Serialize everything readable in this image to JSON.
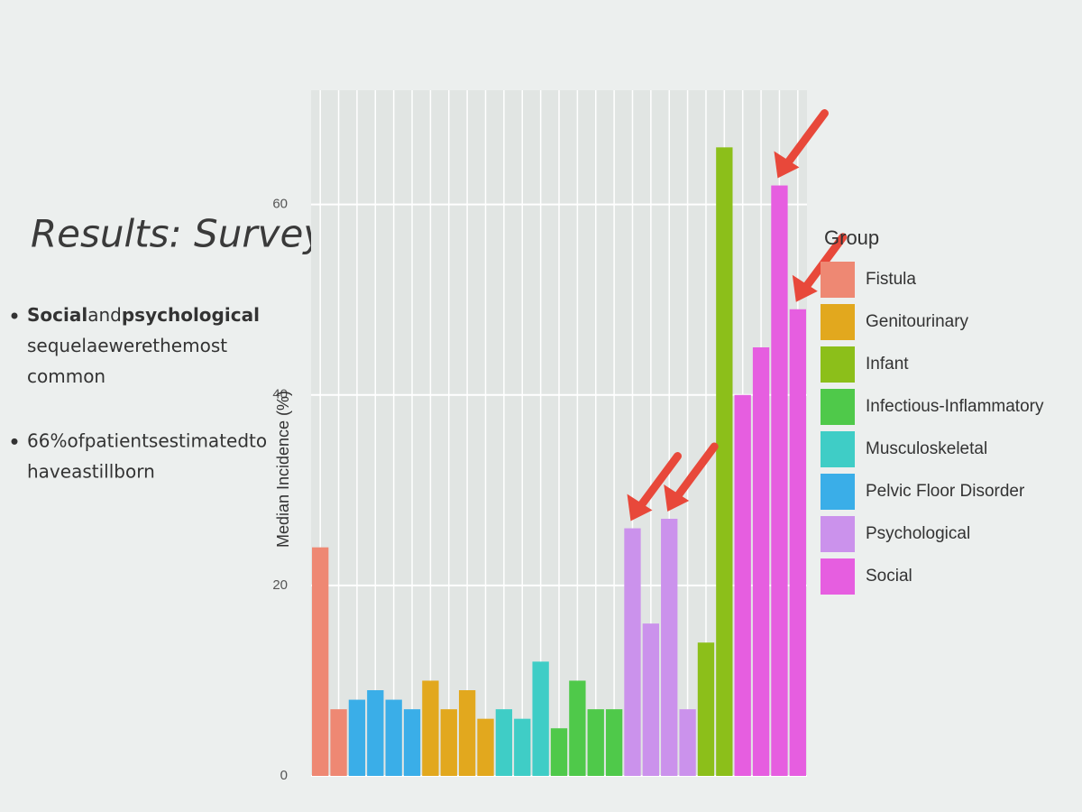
{
  "slide": {
    "title": "Results: Survey",
    "bullets": [
      [
        {
          "text": "Social",
          "bold": true
        },
        {
          "text": " and ",
          "bold": false
        },
        {
          "text": "psychological",
          "bold": true
        },
        {
          "text": " sequelae were the most common",
          "bold": false
        }
      ],
      [
        {
          "text": "66% of patients estimated to have a stillborn",
          "bold": false
        }
      ]
    ]
  },
  "chart_data": {
    "type": "bar",
    "y_label": "Median Incidence (%)",
    "legend_title": "Group",
    "legend": "right",
    "grid": true,
    "categories": [
      null,
      null,
      null,
      null,
      null,
      null,
      null,
      null,
      null,
      null,
      null,
      null,
      null,
      null,
      null,
      null,
      null,
      null,
      null,
      null,
      null,
      null,
      null,
      null,
      null,
      null,
      null
    ],
    "ylim": [
      0,
      72
    ],
    "yticks": [
      0,
      20,
      40,
      60
    ],
    "series": [
      {
        "name": "Fistula",
        "color": "#ee8873",
        "values": [
          24,
          7,
          null,
          null,
          null,
          null,
          null,
          null,
          null,
          null,
          null,
          null,
          null,
          null,
          null,
          null,
          null,
          null,
          null,
          null,
          null,
          null,
          null,
          null,
          null,
          null,
          null
        ]
      },
      {
        "name": "Genitourinary",
        "color": "#e2a81e",
        "values": [
          null,
          null,
          null,
          null,
          null,
          null,
          10,
          7,
          9,
          6,
          null,
          null,
          null,
          null,
          null,
          null,
          null,
          null,
          null,
          null,
          null,
          null,
          null,
          null,
          null,
          null,
          null
        ]
      },
      {
        "name": "Infant",
        "color": "#8cbf1a",
        "values": [
          null,
          null,
          null,
          null,
          null,
          null,
          null,
          null,
          null,
          null,
          null,
          null,
          null,
          null,
          null,
          null,
          null,
          null,
          null,
          null,
          null,
          14,
          66,
          null,
          null,
          null,
          null
        ]
      },
      {
        "name": "Infectious-Inflammatory",
        "color": "#4fc94a",
        "values": [
          null,
          null,
          null,
          null,
          null,
          null,
          null,
          null,
          null,
          null,
          null,
          null,
          null,
          5,
          10,
          7,
          7,
          null,
          null,
          null,
          null,
          null,
          null,
          null,
          null,
          null,
          null
        ]
      },
      {
        "name": "Musculoskeletal",
        "color": "#3fcdc6",
        "values": [
          null,
          null,
          null,
          null,
          null,
          null,
          null,
          null,
          null,
          null,
          7,
          6,
          12,
          null,
          null,
          null,
          null,
          null,
          null,
          null,
          null,
          null,
          null,
          null,
          null,
          null,
          null
        ]
      },
      {
        "name": "Pelvic Floor Disorder",
        "color": "#3aaee8",
        "values": [
          null,
          null,
          8,
          9,
          8,
          7,
          null,
          null,
          null,
          null,
          null,
          null,
          null,
          null,
          null,
          null,
          null,
          null,
          null,
          null,
          null,
          null,
          null,
          null,
          null,
          null,
          null
        ]
      },
      {
        "name": "Psychological",
        "color": "#cb92ec",
        "values": [
          null,
          null,
          null,
          null,
          null,
          null,
          null,
          null,
          null,
          null,
          null,
          null,
          null,
          null,
          null,
          null,
          null,
          26,
          16,
          27,
          7,
          null,
          null,
          null,
          null,
          null,
          null
        ]
      },
      {
        "name": "Social",
        "color": "#e65ee0",
        "values": [
          null,
          null,
          null,
          null,
          null,
          null,
          null,
          null,
          null,
          null,
          null,
          null,
          null,
          null,
          null,
          null,
          null,
          null,
          null,
          null,
          null,
          null,
          null,
          40,
          45,
          62,
          49
        ]
      }
    ]
  }
}
